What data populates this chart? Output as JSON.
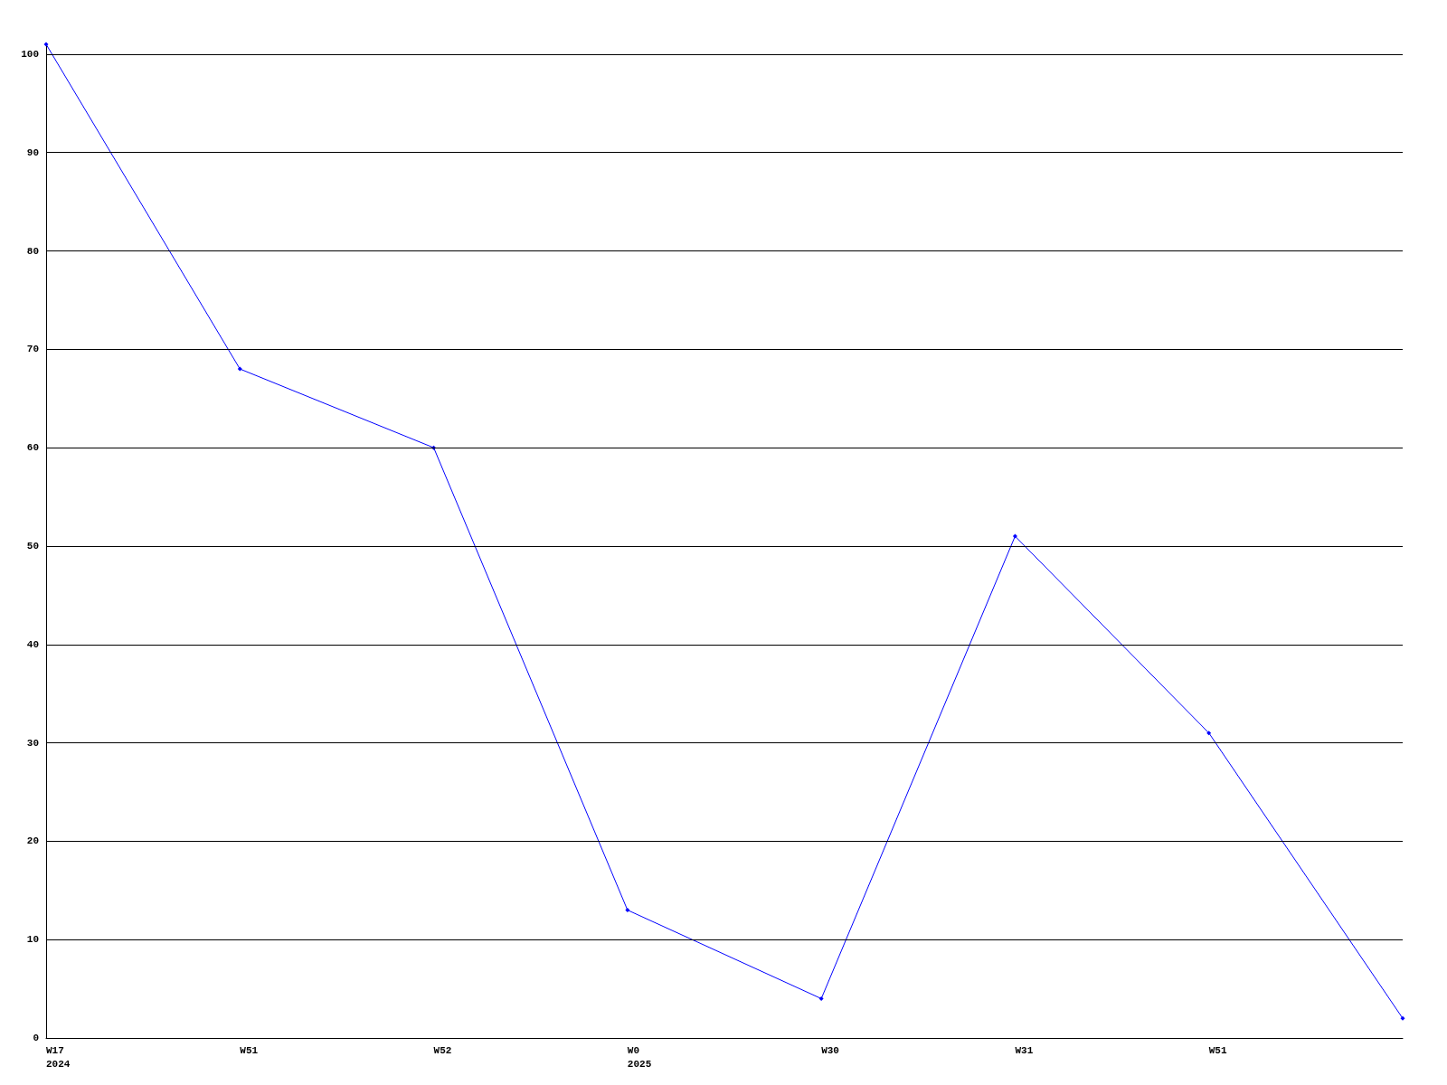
{
  "chart_data": {
    "type": "line",
    "categories": [
      "W17\n2024",
      "W51",
      "W52",
      "W0\n2025",
      "W30",
      "W31",
      "W51",
      null
    ],
    "series": [
      {
        "color": "#0000ff",
        "values": [
          101,
          68,
          60,
          13,
          4,
          51,
          31,
          2
        ]
      }
    ],
    "ylim": [
      0,
      101
    ],
    "yticks": [
      0,
      10,
      20,
      30,
      40,
      50,
      60,
      70,
      80,
      90,
      100
    ],
    "grid": "y",
    "marker": "diamond",
    "line_style": "solid"
  }
}
